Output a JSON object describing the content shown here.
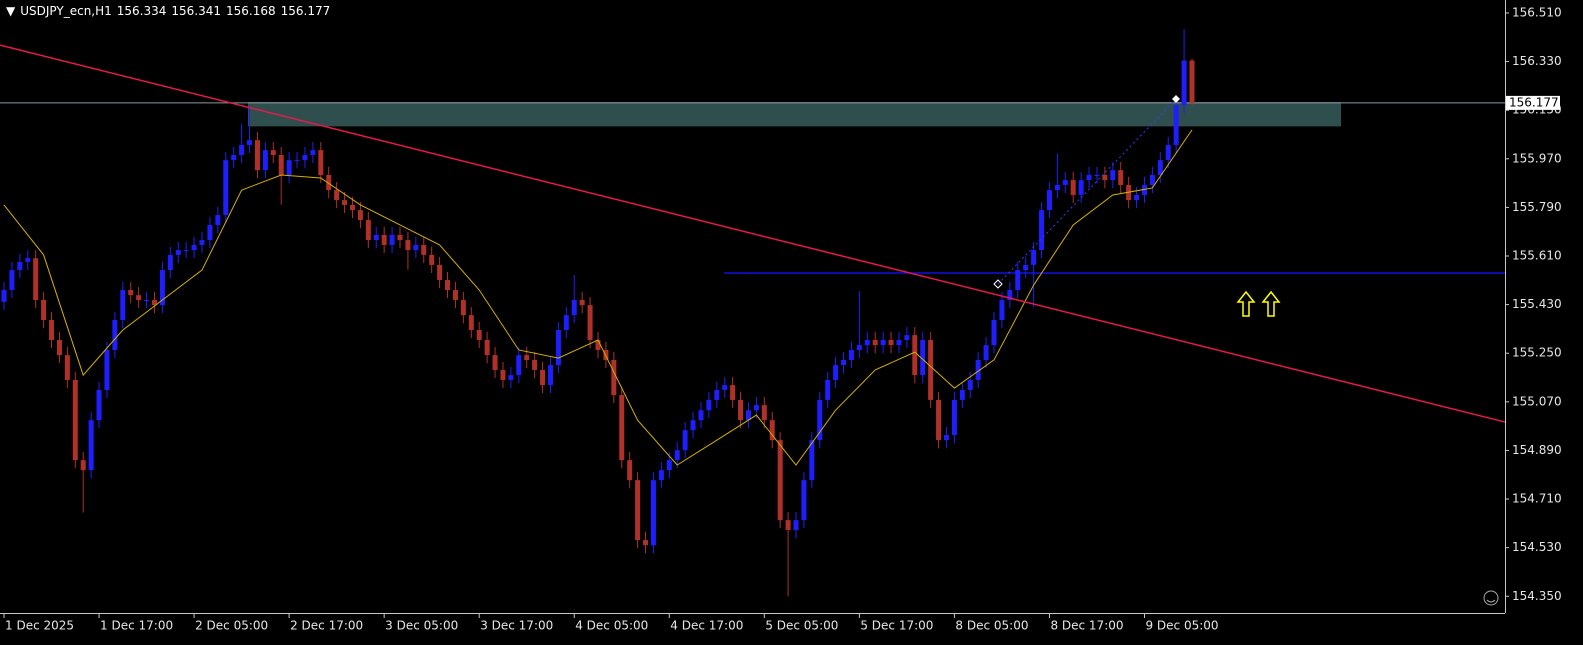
{
  "chart_data": {
    "type": "candlestick",
    "symbol": "USDJPY_ecn,H1",
    "categories": [
      "1 Dec 2025",
      null,
      null,
      null,
      null,
      null,
      null,
      null,
      null,
      null,
      null,
      null,
      "1 Dec 17:00",
      null,
      null,
      null,
      null,
      null,
      null,
      null,
      null,
      null,
      null,
      null,
      "2 Dec 05:00",
      null,
      null,
      null,
      null,
      null,
      null,
      null,
      null,
      null,
      null,
      null,
      "2 Dec 17:00",
      null,
      null,
      null,
      null,
      null,
      null,
      null,
      null,
      null,
      null,
      null,
      "3 Dec 05:00",
      null,
      null,
      null,
      null,
      null,
      null,
      null,
      null,
      null,
      null,
      null,
      "3 Dec 17:00",
      null,
      null,
      null,
      null,
      null,
      null,
      null,
      null,
      null,
      null,
      null,
      "4 Dec 05:00",
      null,
      null,
      null,
      null,
      null,
      null,
      null,
      null,
      null,
      null,
      null,
      "4 Dec 17:00",
      null,
      null,
      null,
      null,
      null,
      null,
      null,
      null,
      null,
      null,
      null,
      "5 Dec 05:00",
      null,
      null,
      null,
      null,
      null,
      null,
      null,
      null,
      null,
      null,
      null,
      "5 Dec 17:00",
      null,
      null,
      null,
      null,
      null,
      null,
      null,
      null,
      null,
      null,
      null,
      "8 Dec 05:00",
      null,
      null,
      null,
      null,
      null,
      null,
      null,
      null,
      null,
      null,
      null,
      "8 Dec 17:00",
      null,
      null,
      null,
      null,
      null,
      null,
      null,
      null,
      null,
      null,
      null,
      "9 Dec 05:00",
      null,
      null,
      null,
      null,
      null,
      null
    ],
    "open": [
      155.44,
      155.484,
      155.558,
      155.588,
      155.602,
      155.447,
      155.373,
      155.299,
      155.243,
      155.151,
      154.854,
      154.817,
      155.002,
      155.114,
      155.262,
      155.373,
      155.484,
      155.465,
      155.447,
      155.447,
      155.428,
      155.558,
      155.614,
      155.632,
      155.632,
      155.651,
      155.669,
      155.725,
      155.762,
      155.965,
      155.984,
      156.021,
      156.039,
      155.928,
      156.002,
      155.984,
      155.91,
      155.965,
      155.965,
      155.984,
      156.002,
      155.91,
      155.854,
      155.817,
      155.799,
      155.78,
      155.743,
      155.669,
      155.688,
      155.651,
      155.688,
      155.669,
      155.632,
      155.651,
      155.614,
      155.577,
      155.521,
      155.484,
      155.447,
      155.391,
      155.336,
      155.299,
      155.243,
      155.188,
      155.151,
      155.169,
      155.243,
      155.225,
      155.188,
      155.132,
      155.206,
      155.336,
      155.391,
      155.447,
      155.428,
      155.299,
      155.262,
      155.225,
      155.095,
      154.854,
      154.78,
      154.558,
      154.539,
      154.78,
      154.817,
      154.854,
      154.891,
      154.965,
      155.002,
      155.039,
      155.077,
      155.114,
      155.132,
      155.077,
      155.002,
      155.039,
      155.058,
      155.002,
      154.928,
      154.632,
      154.595,
      154.632,
      154.78,
      154.928,
      155.077,
      155.151,
      155.206,
      155.225,
      155.262,
      155.28,
      155.299,
      155.28,
      155.299,
      155.28,
      155.299,
      155.317,
      155.169,
      155.299,
      155.077,
      154.928,
      154.947,
      155.077,
      155.114,
      155.151,
      155.225,
      155.28,
      155.373,
      155.447,
      155.484,
      155.558,
      155.577,
      155.632,
      155.78,
      155.854,
      155.873,
      155.891,
      155.836,
      155.891,
      155.91,
      155.91,
      155.891,
      155.928,
      155.873,
      155.817,
      155.836,
      155.873,
      155.91,
      155.965,
      156.021,
      156.169,
      156.334
    ],
    "high": [
      155.514,
      155.588,
      155.618,
      155.632,
      155.632,
      155.477,
      155.403,
      155.329,
      155.273,
      155.181,
      154.884,
      155.032,
      155.144,
      155.292,
      155.403,
      155.514,
      155.514,
      155.495,
      155.477,
      155.477,
      155.588,
      155.644,
      155.662,
      155.662,
      155.681,
      155.699,
      155.755,
      155.792,
      155.995,
      156.014,
      156.1,
      156.16,
      156.069,
      156.032,
      156.032,
      156.014,
      155.995,
      155.995,
      156.014,
      156.032,
      156.032,
      155.94,
      155.884,
      155.847,
      155.829,
      155.81,
      155.773,
      155.718,
      155.718,
      155.718,
      155.718,
      155.699,
      155.681,
      155.681,
      155.644,
      155.607,
      155.551,
      155.514,
      155.477,
      155.421,
      155.366,
      155.329,
      155.273,
      155.218,
      155.199,
      155.273,
      155.273,
      155.255,
      155.218,
      155.236,
      155.366,
      155.421,
      155.54,
      155.477,
      155.458,
      155.329,
      155.292,
      155.255,
      155.125,
      154.884,
      154.81,
      154.588,
      154.81,
      154.847,
      154.884,
      154.921,
      154.995,
      155.032,
      155.069,
      155.107,
      155.144,
      155.162,
      155.162,
      155.107,
      155.069,
      155.088,
      155.088,
      155.032,
      154.958,
      154.662,
      154.662,
      154.81,
      154.958,
      155.107,
      155.181,
      155.236,
      155.255,
      155.292,
      155.48,
      155.329,
      155.329,
      155.329,
      155.329,
      155.329,
      155.347,
      155.347,
      155.329,
      155.329,
      155.107,
      154.977,
      155.107,
      155.144,
      155.181,
      155.255,
      155.31,
      155.403,
      155.477,
      155.514,
      155.588,
      155.607,
      155.662,
      155.81,
      155.884,
      155.99,
      155.921,
      155.921,
      155.921,
      155.94,
      155.94,
      155.94,
      155.958,
      155.958,
      155.903,
      155.866,
      155.903,
      155.94,
      155.995,
      156.051,
      156.199,
      156.45,
      156.341
    ],
    "low": [
      155.41,
      155.454,
      155.528,
      155.558,
      155.417,
      155.343,
      155.269,
      155.213,
      155.121,
      154.824,
      154.66,
      154.787,
      154.972,
      155.084,
      155.232,
      155.343,
      155.435,
      155.417,
      155.417,
      155.398,
      155.398,
      155.528,
      155.584,
      155.602,
      155.602,
      155.621,
      155.639,
      155.695,
      155.732,
      155.935,
      155.954,
      155.991,
      155.898,
      155.898,
      155.954,
      155.8,
      155.88,
      155.935,
      155.935,
      155.954,
      155.88,
      155.824,
      155.787,
      155.769,
      155.75,
      155.713,
      155.639,
      155.639,
      155.621,
      155.621,
      155.639,
      155.56,
      155.602,
      155.584,
      155.547,
      155.491,
      155.454,
      155.417,
      155.361,
      155.306,
      155.269,
      155.213,
      155.158,
      155.121,
      155.121,
      155.139,
      155.195,
      155.158,
      155.102,
      155.102,
      155.176,
      155.306,
      155.361,
      155.398,
      155.269,
      155.232,
      155.195,
      155.065,
      154.824,
      154.75,
      154.528,
      154.509,
      154.509,
      154.75,
      154.787,
      154.824,
      154.861,
      154.935,
      154.972,
      155.009,
      155.047,
      155.084,
      155.047,
      154.972,
      154.972,
      155.009,
      154.972,
      154.898,
      154.602,
      154.35,
      154.565,
      154.602,
      154.75,
      154.898,
      155.047,
      155.121,
      155.176,
      155.195,
      155.232,
      155.25,
      155.25,
      155.25,
      155.25,
      155.25,
      155.269,
      155.139,
      155.139,
      155.047,
      154.898,
      154.898,
      154.917,
      155.047,
      155.084,
      155.121,
      155.195,
      155.25,
      155.343,
      155.417,
      155.454,
      155.528,
      155.42,
      155.602,
      155.75,
      155.824,
      155.843,
      155.806,
      155.806,
      155.861,
      155.88,
      155.861,
      155.861,
      155.843,
      155.787,
      155.787,
      155.806,
      155.843,
      155.88,
      155.935,
      155.991,
      156.139,
      156.168
    ],
    "close": [
      155.484,
      155.558,
      155.588,
      155.602,
      155.447,
      155.373,
      155.299,
      155.243,
      155.151,
      154.854,
      154.817,
      155.002,
      155.114,
      155.262,
      155.373,
      155.484,
      155.465,
      155.447,
      155.447,
      155.428,
      155.558,
      155.614,
      155.632,
      155.632,
      155.651,
      155.669,
      155.725,
      155.762,
      155.965,
      155.984,
      156.021,
      156.039,
      155.928,
      156.002,
      155.984,
      155.91,
      155.965,
      155.965,
      155.984,
      156.002,
      155.91,
      155.854,
      155.817,
      155.799,
      155.78,
      155.743,
      155.669,
      155.688,
      155.651,
      155.688,
      155.669,
      155.632,
      155.651,
      155.614,
      155.577,
      155.521,
      155.484,
      155.447,
      155.391,
      155.336,
      155.299,
      155.243,
      155.188,
      155.151,
      155.169,
      155.243,
      155.225,
      155.188,
      155.132,
      155.206,
      155.336,
      155.391,
      155.447,
      155.428,
      155.299,
      155.262,
      155.225,
      155.095,
      154.854,
      154.78,
      154.558,
      154.539,
      154.78,
      154.817,
      154.854,
      154.891,
      154.965,
      155.002,
      155.039,
      155.077,
      155.114,
      155.132,
      155.077,
      155.002,
      155.039,
      155.058,
      155.002,
      154.928,
      154.632,
      154.595,
      154.632,
      154.78,
      154.928,
      155.077,
      155.151,
      155.206,
      155.225,
      155.262,
      155.28,
      155.299,
      155.28,
      155.299,
      155.28,
      155.299,
      155.317,
      155.169,
      155.299,
      155.077,
      154.928,
      154.947,
      155.077,
      155.114,
      155.151,
      155.225,
      155.28,
      155.373,
      155.447,
      155.484,
      155.558,
      155.577,
      155.632,
      155.78,
      155.854,
      155.873,
      155.891,
      155.836,
      155.891,
      155.91,
      155.91,
      155.891,
      155.928,
      155.873,
      155.817,
      155.836,
      155.873,
      155.91,
      155.965,
      156.021,
      156.169,
      156.334,
      156.177
    ],
    "bull_color": "#1e1eff",
    "bear_color": "#b0302a",
    "ma": {
      "color": "#d4b000",
      "bar_index": [
        0,
        5,
        10,
        15,
        20,
        25,
        30,
        35,
        40,
        45,
        50,
        55,
        60,
        65,
        70,
        75,
        80,
        85,
        90,
        95,
        100,
        105,
        110,
        115,
        120,
        125,
        130,
        135,
        140,
        145,
        150
      ],
      "values": [
        155.799,
        155.614,
        155.169,
        155.336,
        155.447,
        155.558,
        155.854,
        155.91,
        155.899,
        155.799,
        155.725,
        155.651,
        155.484,
        155.262,
        155.232,
        155.299,
        155.002,
        154.836,
        154.928,
        155.021,
        154.836,
        155.039,
        155.188,
        155.254,
        155.121,
        155.225,
        155.502,
        155.725,
        155.836,
        155.862,
        156.077
      ]
    },
    "trendline": {
      "color": "#e8194a",
      "start": 156.391,
      "end": 154.995
    },
    "zone": {
      "color": "#2f4f4f",
      "top": 156.18,
      "bottom": 156.09
    },
    "level": {
      "color": "#1010e0",
      "value": 155.547
    },
    "ylim": [
      154.288,
      156.558
    ],
    "yticks": [
      {
        "value": 156.51,
        "label": "156.510"
      },
      {
        "value": 156.33,
        "label": "156.330"
      },
      {
        "value": 156.15,
        "label": "156.150"
      },
      {
        "value": 155.97,
        "label": "155.970"
      },
      {
        "value": 155.79,
        "label": "155.790"
      },
      {
        "value": 155.61,
        "label": "155.610"
      },
      {
        "value": 155.43,
        "label": "155.430"
      },
      {
        "value": 155.25,
        "label": "155.250"
      },
      {
        "value": 155.07,
        "label": "155.070"
      },
      {
        "value": 154.89,
        "label": "154.890"
      },
      {
        "value": 154.71,
        "label": "154.710"
      },
      {
        "value": 154.53,
        "label": "154.530"
      },
      {
        "value": 154.35,
        "label": "154.350"
      }
    ]
  }
}
